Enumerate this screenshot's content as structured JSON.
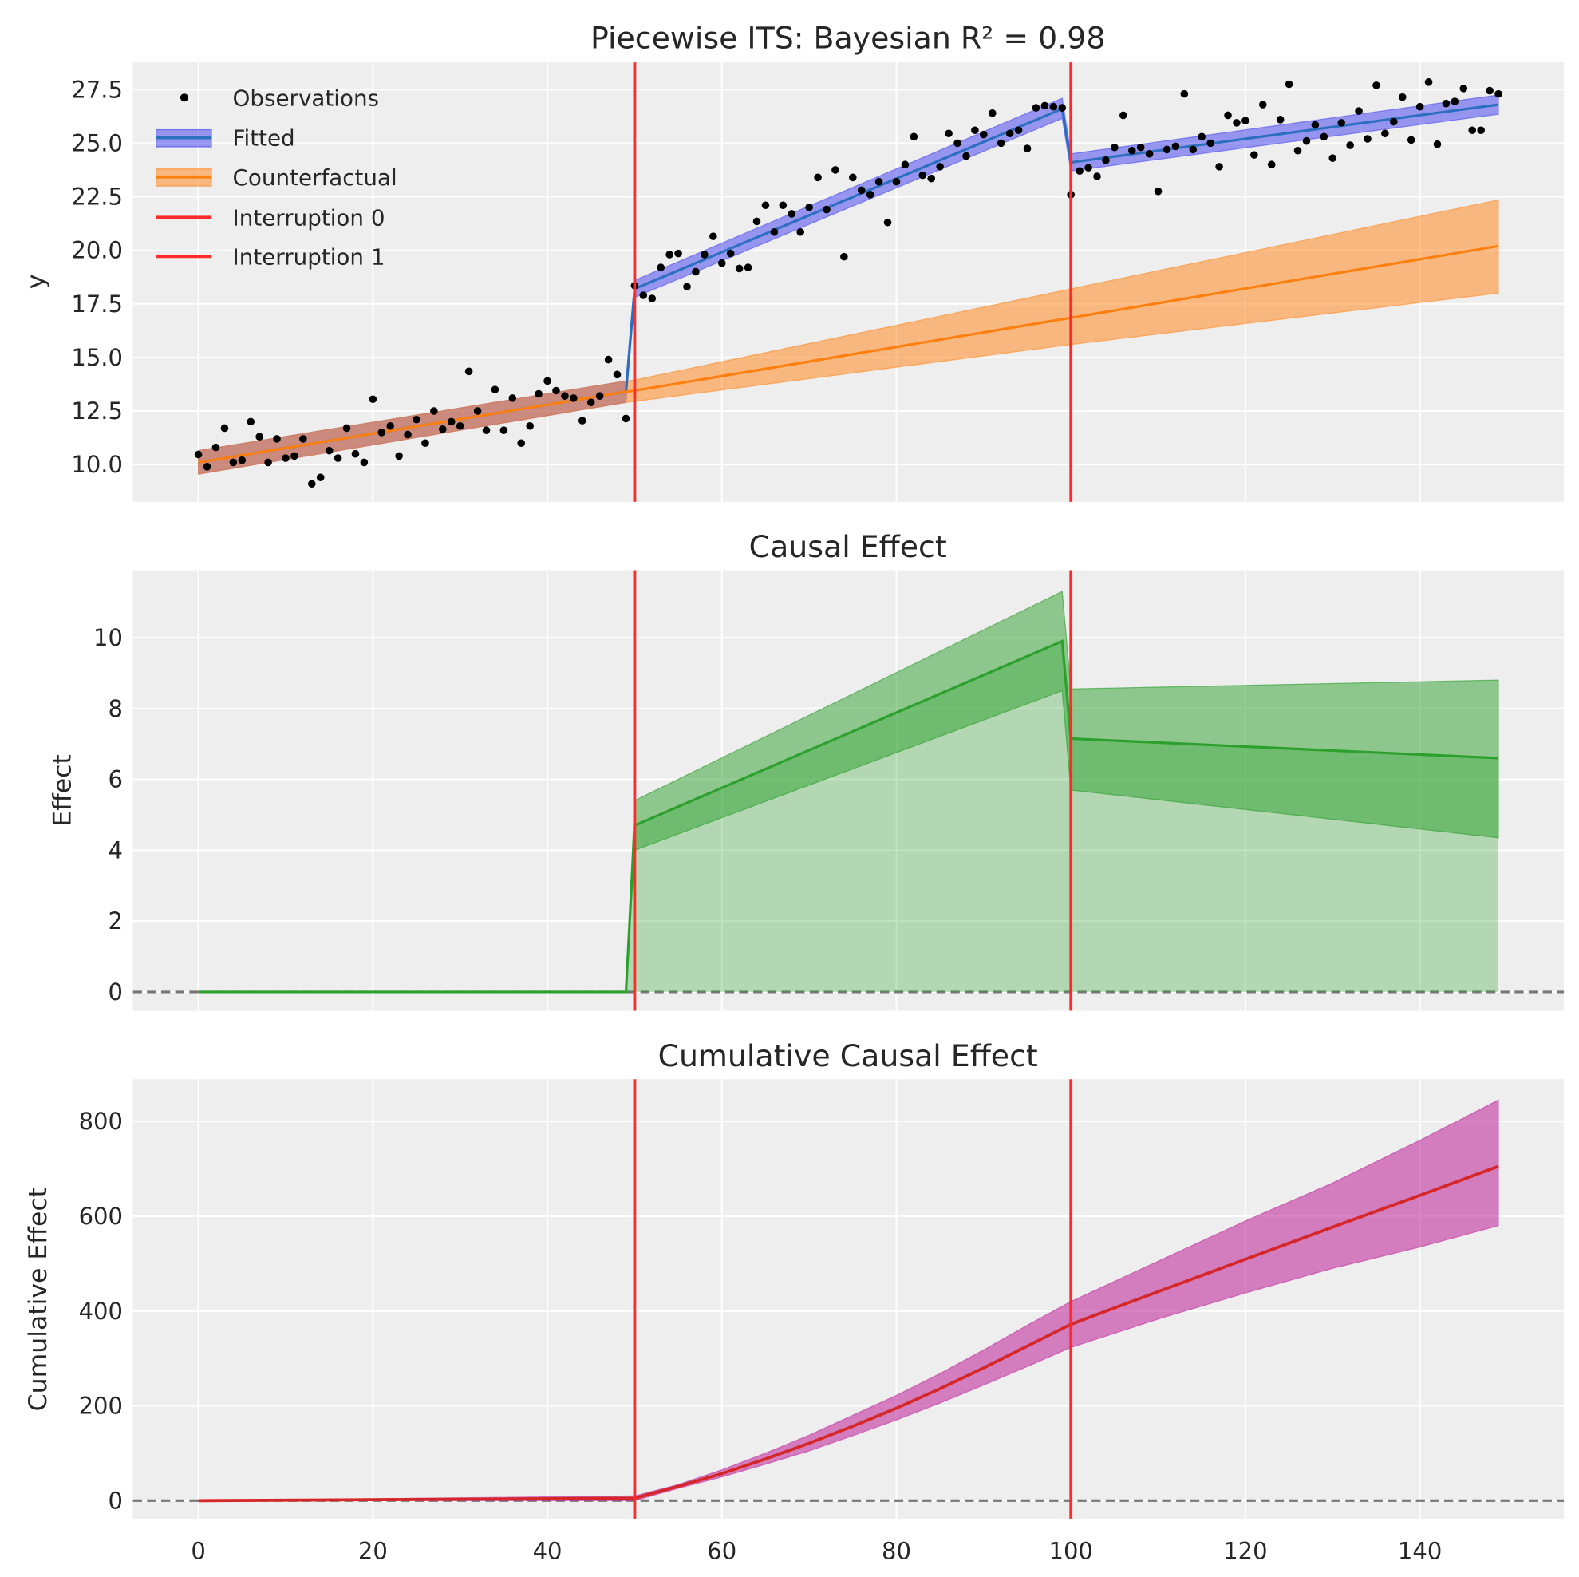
{
  "colors": {
    "background": "#eeeeee",
    "grid": "#ffffff",
    "observations": "#000000",
    "fitted_band": "#3b3bf0",
    "fitted_line": "#2d6fbf",
    "counterfactual": "#ff7f0e",
    "interruption": "#ff2a2a",
    "effect": "#2ca02c",
    "cumulative_band": "#c2329f",
    "cumulative_line": "#d62728",
    "zero_line": "#777777"
  },
  "chart_data": [
    {
      "type": "line",
      "title": "Piecewise ITS: Bayesian R² = 0.98",
      "xlabel": "",
      "ylabel": "y",
      "xlim": [
        -7.5,
        156.5
      ],
      "ylim": [
        8.26,
        28.77
      ],
      "grid": true,
      "legend_placement": "top-left",
      "xticks": [
        0,
        20,
        40,
        60,
        80,
        100,
        120,
        140
      ],
      "yticks": [
        10,
        12.5,
        15,
        17.5,
        20,
        22.5,
        25,
        27.5
      ],
      "ytick_labels": [
        "10.0",
        "12.5",
        "15.0",
        "17.5",
        "20.0",
        "22.5",
        "25.0",
        "27.5"
      ],
      "interruptions": [
        50,
        100
      ],
      "legend": [
        "Observations",
        "Fitted",
        "Counterfactual",
        "Interruption 0",
        "Interruption 1"
      ],
      "observations": {
        "name": "Observations",
        "y": [
          10.47,
          9.9,
          10.8,
          11.7,
          10.1,
          10.2,
          12.0,
          11.3,
          10.1,
          11.2,
          10.3,
          10.4,
          11.2,
          9.1,
          9.4,
          10.65,
          10.3,
          11.7,
          10.5,
          10.1,
          13.05,
          11.5,
          11.8,
          10.4,
          11.4,
          12.1,
          11.0,
          12.5,
          11.65,
          12.0,
          11.8,
          14.35,
          12.5,
          11.6,
          13.5,
          11.6,
          13.1,
          11.0,
          11.8,
          13.3,
          13.9,
          13.45,
          13.2,
          13.1,
          12.05,
          12.9,
          13.2,
          14.9,
          14.2,
          12.15,
          18.35,
          17.9,
          17.75,
          19.2,
          19.8,
          19.85,
          18.3,
          19.0,
          19.8,
          20.65,
          19.4,
          19.85,
          19.15,
          19.2,
          21.35,
          22.1,
          20.85,
          22.1,
          21.7,
          20.85,
          22.0,
          23.4,
          21.9,
          23.75,
          19.7,
          23.4,
          22.8,
          22.6,
          23.2,
          21.3,
          23.2,
          24.0,
          25.3,
          23.5,
          23.35,
          23.9,
          25.45,
          25.0,
          24.4,
          25.6,
          25.4,
          26.4,
          25.0,
          25.45,
          25.6,
          24.75,
          26.65,
          26.75,
          26.7,
          26.65,
          22.6,
          23.7,
          23.85,
          23.45,
          24.2,
          24.8,
          26.3,
          24.65,
          24.8,
          24.5,
          22.75,
          24.7,
          24.85,
          27.3,
          24.7,
          25.3,
          25.0,
          23.9,
          26.3,
          25.95,
          26.05,
          24.45,
          26.8,
          24.0,
          26.1,
          27.75,
          24.65,
          25.1,
          25.85,
          25.3,
          24.3,
          25.95,
          24.9,
          26.5,
          25.2,
          27.7,
          25.45,
          26.0,
          27.15,
          25.15,
          26.7,
          27.85,
          24.95,
          26.85,
          26.95,
          27.55,
          25.6,
          25.6,
          27.45,
          27.3
        ]
      },
      "fitted": {
        "name": "Fitted",
        "x": [
          0,
          49,
          50,
          99,
          100,
          149
        ],
        "mean": [
          10.1,
          13.4,
          18.2,
          26.6,
          24.1,
          26.8
        ],
        "lower": [
          9.55,
          12.9,
          17.8,
          26.15,
          23.7,
          26.35
        ],
        "upper": [
          10.65,
          13.9,
          18.6,
          27.1,
          24.5,
          27.25
        ]
      },
      "counterfactual": {
        "name": "Counterfactual",
        "x": [
          0,
          49,
          50,
          100,
          149
        ],
        "mean": [
          10.1,
          13.4,
          13.45,
          16.85,
          20.2
        ],
        "lower": [
          9.55,
          12.9,
          12.95,
          15.6,
          18.0
        ],
        "upper": [
          10.65,
          13.9,
          13.95,
          18.2,
          22.35
        ]
      }
    },
    {
      "type": "area",
      "title": "Causal Effect",
      "ylabel": "Effect",
      "xlim": [
        -7.5,
        156.5
      ],
      "ylim": [
        -0.53,
        11.9
      ],
      "grid": true,
      "xticks": [
        0,
        20,
        40,
        60,
        80,
        100,
        120,
        140
      ],
      "yticks": [
        0,
        2,
        4,
        6,
        8,
        10
      ],
      "ytick_labels": [
        "0",
        "2",
        "4",
        "6",
        "8",
        "10"
      ],
      "interruptions": [
        50,
        100
      ],
      "zero_line": 0,
      "x": [
        0,
        49,
        50,
        99,
        100,
        149
      ],
      "mean": [
        0,
        0,
        4.7,
        9.9,
        7.15,
        6.6
      ],
      "lower": [
        0,
        0,
        4.0,
        8.5,
        5.7,
        4.35
      ],
      "upper": [
        0,
        0,
        5.4,
        11.3,
        8.55,
        8.8
      ]
    },
    {
      "type": "area",
      "title": "Cumulative Causal Effect",
      "ylabel": "Cumulative Effect",
      "xlim": [
        -7.5,
        156.5
      ],
      "ylim": [
        -38,
        889
      ],
      "grid": true,
      "xticks": [
        0,
        20,
        40,
        60,
        80,
        100,
        120,
        140
      ],
      "xtick_labels": [
        "0",
        "20",
        "40",
        "60",
        "80",
        "100",
        "120",
        "140"
      ],
      "yticks": [
        0,
        200,
        400,
        600,
        800
      ],
      "ytick_labels": [
        "0",
        "200",
        "400",
        "600",
        "800"
      ],
      "interruptions": [
        50,
        100
      ],
      "zero_line": 0,
      "x": [
        0,
        50,
        55,
        60,
        65,
        70,
        75,
        80,
        85,
        90,
        95,
        100,
        110,
        120,
        130,
        140,
        149
      ],
      "mean": [
        0,
        5,
        30,
        57,
        88,
        121,
        157,
        195,
        236,
        280,
        326,
        372,
        441,
        509,
        577,
        644,
        705
      ],
      "lower": [
        0,
        0,
        26,
        50,
        77,
        105,
        137,
        170,
        206,
        244,
        283,
        323,
        383,
        438,
        490,
        535,
        580
      ],
      "upper": [
        0,
        10,
        34,
        65,
        100,
        138,
        180,
        222,
        268,
        318,
        370,
        420,
        505,
        590,
        670,
        760,
        845
      ]
    }
  ]
}
